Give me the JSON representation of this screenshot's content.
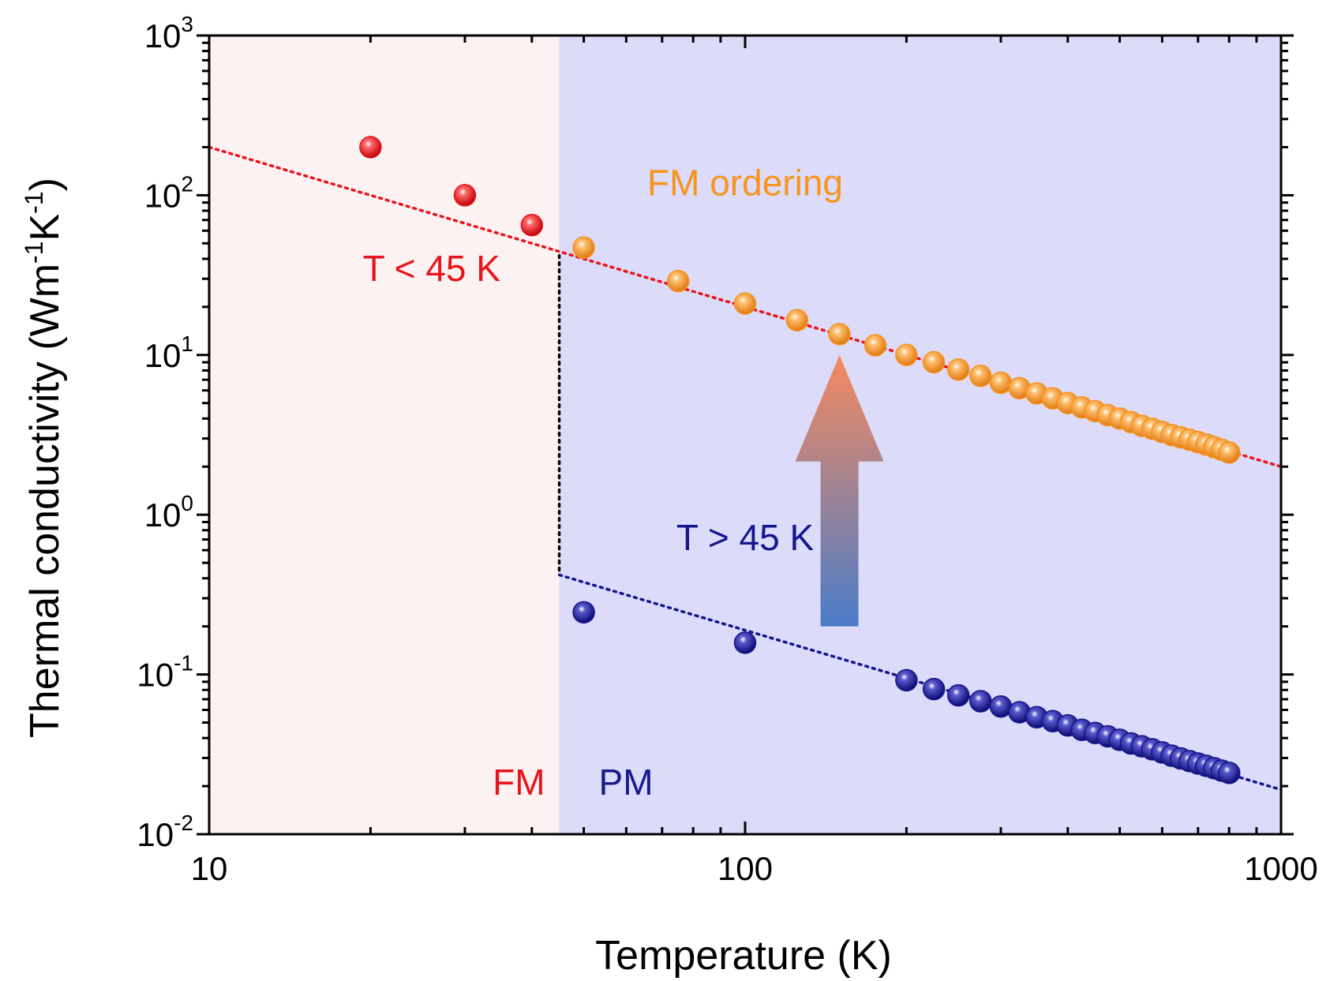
{
  "chart_data": {
    "type": "scatter",
    "x_scale": "log",
    "y_scale": "log",
    "xlim": [
      10,
      1000
    ],
    "ylim": [
      0.01,
      1000
    ],
    "xlabel": "Temperature (K)",
    "ylabel_main": "Thermal conductivity (Wm",
    "ylabel_sup1": "-1",
    "ylabel_mid": "K",
    "ylabel_sup2": "-1",
    "ylabel_end": ")",
    "x_ticks": [
      {
        "value": 10,
        "label": "10"
      },
      {
        "value": 100,
        "label": "100"
      },
      {
        "value": 1000,
        "label": "1000"
      }
    ],
    "y_ticks": [
      {
        "value": 0.01,
        "base": "10",
        "exp": "-2"
      },
      {
        "value": 0.1,
        "base": "10",
        "exp": "-1"
      },
      {
        "value": 1,
        "base": "10",
        "exp": "0"
      },
      {
        "value": 10,
        "base": "10",
        "exp": "1"
      },
      {
        "value": 100,
        "base": "10",
        "exp": "2"
      },
      {
        "value": 1000,
        "base": "10",
        "exp": "3"
      }
    ],
    "regions": [
      {
        "x_range": [
          10,
          45
        ],
        "color": "#fdf2f2",
        "label": "FM",
        "label_color": "#e8141c"
      },
      {
        "x_range": [
          45,
          1000
        ],
        "color": "#dcdcfa",
        "label": "PM",
        "label_color": "#1a1a8c"
      }
    ],
    "series": [
      {
        "marker_color": "#e8141c",
        "points": [
          [
            20,
            200
          ],
          [
            30,
            100
          ],
          [
            40,
            65
          ]
        ]
      },
      {
        "marker_color": "#f7941d",
        "points": [
          [
            50,
            47
          ],
          [
            75,
            29
          ],
          [
            100,
            21
          ],
          [
            125,
            16.5
          ],
          [
            150,
            13.5
          ],
          [
            175,
            11.5
          ],
          [
            200,
            10
          ],
          [
            225,
            9
          ],
          [
            250,
            8.1
          ],
          [
            275,
            7.4
          ],
          [
            300,
            6.7
          ],
          [
            325,
            6.2
          ],
          [
            350,
            5.75
          ],
          [
            375,
            5.35
          ],
          [
            400,
            5.0
          ],
          [
            425,
            4.7
          ],
          [
            450,
            4.45
          ],
          [
            475,
            4.2
          ],
          [
            500,
            4.0
          ],
          [
            525,
            3.8
          ],
          [
            550,
            3.6
          ],
          [
            575,
            3.45
          ],
          [
            600,
            3.3
          ],
          [
            625,
            3.15
          ],
          [
            650,
            3.05
          ],
          [
            675,
            2.95
          ],
          [
            700,
            2.85
          ],
          [
            725,
            2.75
          ],
          [
            750,
            2.65
          ],
          [
            775,
            2.55
          ],
          [
            800,
            2.45
          ]
        ]
      },
      {
        "marker_color": "#16168c",
        "points": [
          [
            50,
            0.245
          ],
          [
            100,
            0.158
          ],
          [
            200,
            0.092
          ],
          [
            225,
            0.081
          ],
          [
            250,
            0.074
          ],
          [
            275,
            0.068
          ],
          [
            300,
            0.063
          ],
          [
            325,
            0.058
          ],
          [
            350,
            0.054
          ],
          [
            375,
            0.051
          ],
          [
            400,
            0.048
          ],
          [
            425,
            0.045
          ],
          [
            450,
            0.043
          ],
          [
            475,
            0.041
          ],
          [
            500,
            0.039
          ],
          [
            525,
            0.037
          ],
          [
            550,
            0.0355
          ],
          [
            575,
            0.034
          ],
          [
            600,
            0.0325
          ],
          [
            625,
            0.031
          ],
          [
            650,
            0.0298
          ],
          [
            675,
            0.0287
          ],
          [
            700,
            0.0277
          ],
          [
            725,
            0.0268
          ],
          [
            750,
            0.0259
          ],
          [
            775,
            0.025
          ],
          [
            800,
            0.0242
          ]
        ]
      }
    ],
    "fit_lines": [
      {
        "color": "#e8141c",
        "from": [
          10,
          200
        ],
        "to": [
          1000,
          2.0
        ]
      },
      {
        "color": "#16168c",
        "from": [
          45,
          0.42
        ],
        "to": [
          1000,
          0.019
        ]
      },
      {
        "color": "#000000",
        "from": [
          45,
          42
        ],
        "to": [
          45,
          0.42
        ]
      }
    ],
    "annotations": [
      {
        "text": "FM ordering",
        "color": "#f7941d",
        "at": [
          100,
          100
        ]
      },
      {
        "text": "T < 45 K",
        "color": "#e8141c",
        "at": [
          26,
          29
        ]
      },
      {
        "text": "T > 45 K",
        "color": "#16168c",
        "at": [
          100,
          0.6
        ]
      }
    ],
    "arrow": {
      "x": 150,
      "y_from": 0.2,
      "y_to": 10,
      "color_top": "#f58a5e",
      "color_bottom": "#4a7cc9"
    }
  }
}
